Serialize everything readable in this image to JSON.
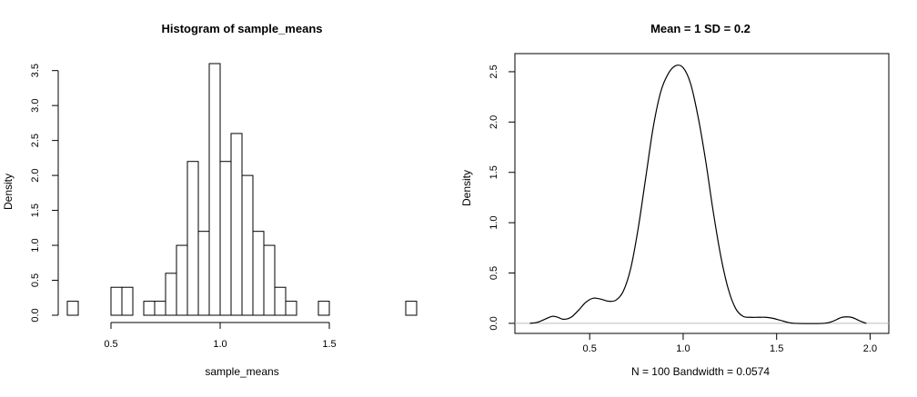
{
  "chart_data": [
    {
      "type": "bar",
      "title": "Histogram of sample_means",
      "xlabel": "sample_means",
      "ylabel": "Density",
      "xlim": [
        0.3,
        1.9
      ],
      "ylim": [
        0,
        3.6
      ],
      "bin_width": 0.05,
      "bins": [
        {
          "x0": 0.3,
          "x1": 0.35,
          "density": 0.2
        },
        {
          "x0": 0.5,
          "x1": 0.55,
          "density": 0.4
        },
        {
          "x0": 0.55,
          "x1": 0.6,
          "density": 0.4
        },
        {
          "x0": 0.65,
          "x1": 0.7,
          "density": 0.2
        },
        {
          "x0": 0.7,
          "x1": 0.75,
          "density": 0.2
        },
        {
          "x0": 0.75,
          "x1": 0.8,
          "density": 0.6
        },
        {
          "x0": 0.8,
          "x1": 0.85,
          "density": 1.0
        },
        {
          "x0": 0.85,
          "x1": 0.9,
          "density": 2.2
        },
        {
          "x0": 0.9,
          "x1": 0.95,
          "density": 1.2
        },
        {
          "x0": 0.95,
          "x1": 1.0,
          "density": 3.6
        },
        {
          "x0": 1.0,
          "x1": 1.05,
          "density": 2.2
        },
        {
          "x0": 1.05,
          "x1": 1.1,
          "density": 2.6
        },
        {
          "x0": 1.1,
          "x1": 1.15,
          "density": 2.0
        },
        {
          "x0": 1.15,
          "x1": 1.2,
          "density": 1.2
        },
        {
          "x0": 1.2,
          "x1": 1.25,
          "density": 1.0
        },
        {
          "x0": 1.25,
          "x1": 1.3,
          "density": 0.4
        },
        {
          "x0": 1.3,
          "x1": 1.35,
          "density": 0.2
        },
        {
          "x0": 1.45,
          "x1": 1.5,
          "density": 0.2
        },
        {
          "x0": 1.85,
          "x1": 1.9,
          "density": 0.2
        }
      ],
      "x_ticks": [
        0.5,
        1.0,
        1.5
      ],
      "x_tick_labels": [
        "0.5",
        "1.0",
        "1.5"
      ],
      "y_ticks": [
        0,
        0.5,
        1,
        1.5,
        2,
        2.5,
        3,
        3.5
      ],
      "y_tick_labels": [
        "0.0",
        "0.5",
        "1.0",
        "1.5",
        "2.0",
        "2.5",
        "3.0",
        "3.5"
      ],
      "grid": false,
      "box": false
    },
    {
      "type": "line",
      "title": "Mean =  1 SD =  0.2",
      "xlabel": "N = 100   Bandwidth = 0.0574",
      "ylabel": "Density",
      "xlim": [
        0.1,
        2.1
      ],
      "ylim": [
        -0.1,
        2.68
      ],
      "x_ticks": [
        0.5,
        1.0,
        1.5,
        2.0
      ],
      "x_tick_labels": [
        "0.5",
        "1.0",
        "1.5",
        "2.0"
      ],
      "y_ticks": [
        0,
        0.5,
        1,
        1.5,
        2,
        2.5
      ],
      "y_tick_labels": [
        "0.0",
        "0.5",
        "1.0",
        "1.5",
        "2.0",
        "2.5"
      ],
      "baseline_y": 0,
      "baseline_color": "#bebebe",
      "grid": false,
      "box": true,
      "series": [
        {
          "x": [
            0.18,
            0.22,
            0.26,
            0.3,
            0.33,
            0.36,
            0.4,
            0.44,
            0.48,
            0.52,
            0.56,
            0.6,
            0.64,
            0.68,
            0.72,
            0.76,
            0.8,
            0.84,
            0.88,
            0.92,
            0.96,
            1.0,
            1.04,
            1.08,
            1.12,
            1.16,
            1.2,
            1.24,
            1.28,
            1.32,
            1.36,
            1.4,
            1.44,
            1.48,
            1.52,
            1.56,
            1.6,
            1.75,
            1.8,
            1.85,
            1.9,
            1.95,
            1.98
          ],
          "y": [
            0.0,
            0.01,
            0.04,
            0.07,
            0.06,
            0.04,
            0.06,
            0.13,
            0.21,
            0.25,
            0.24,
            0.22,
            0.23,
            0.32,
            0.55,
            0.95,
            1.45,
            1.95,
            2.3,
            2.48,
            2.56,
            2.54,
            2.38,
            2.05,
            1.62,
            1.12,
            0.68,
            0.35,
            0.15,
            0.07,
            0.06,
            0.06,
            0.06,
            0.05,
            0.03,
            0.01,
            0.0,
            0.0,
            0.02,
            0.06,
            0.06,
            0.02,
            0.0
          ]
        }
      ]
    }
  ]
}
